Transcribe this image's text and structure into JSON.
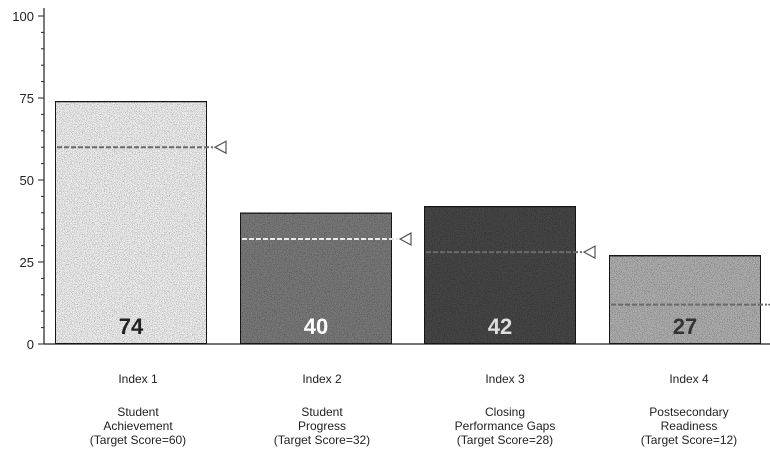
{
  "chart_data": {
    "type": "bar",
    "title": "",
    "xlabel": "",
    "ylabel": "",
    "ylim": [
      0,
      100
    ],
    "yticks": [
      0,
      25,
      50,
      75,
      100
    ],
    "grid": false,
    "categories": [
      {
        "index_label": "Index 1",
        "name_lines": [
          "Student",
          "Achievement",
          "(Target Score=60)"
        ],
        "value": 74,
        "target": 60,
        "fill": "#f4f4f4",
        "label_color": "#222222"
      },
      {
        "index_label": "Index 2",
        "name_lines": [
          "Student",
          "Progress",
          "(Target Score=32)"
        ],
        "value": 40,
        "target": 32,
        "fill": "#7d7d7d",
        "label_color": "#ffffff"
      },
      {
        "index_label": "Index 3",
        "name_lines": [
          "Closing",
          "Performance Gaps",
          "(Target Score=28)"
        ],
        "value": 42,
        "target": 28,
        "fill": "#4a4a4a",
        "label_color": "#dddddd"
      },
      {
        "index_label": "Index 4",
        "name_lines": [
          "Postsecondary",
          "Readiness",
          "(Target Score=12)"
        ],
        "value": 27,
        "target": 12,
        "fill": "#b3b3b3",
        "label_color": "#333333"
      }
    ]
  }
}
